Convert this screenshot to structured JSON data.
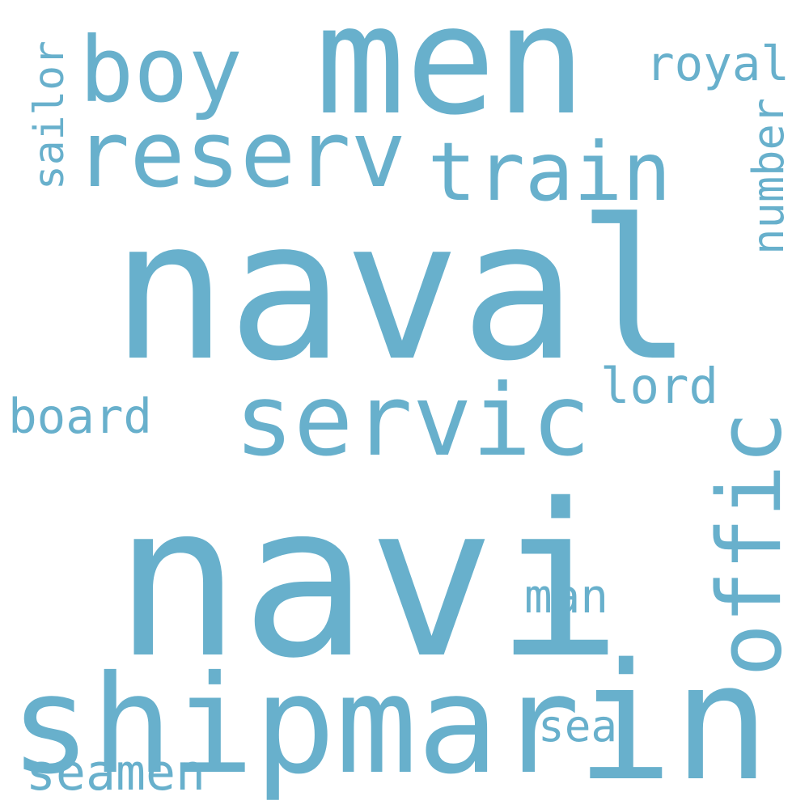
{
  "color": "#68b0cc",
  "words": [
    {
      "id": "naval",
      "text": "naval"
    },
    {
      "id": "navi",
      "text": "navi"
    },
    {
      "id": "men",
      "text": "men"
    },
    {
      "id": "servic",
      "text": "servic"
    },
    {
      "id": "shipmar",
      "text": "shipmar"
    },
    {
      "id": "in",
      "text": "in"
    },
    {
      "id": "reserv",
      "text": "reserv"
    },
    {
      "id": "train",
      "text": "train"
    },
    {
      "id": "boy",
      "text": "boy"
    },
    {
      "id": "offic",
      "text": "offic"
    },
    {
      "id": "royal",
      "text": "royal"
    },
    {
      "id": "sailor",
      "text": "sailor"
    },
    {
      "id": "number",
      "text": "number"
    },
    {
      "id": "lord",
      "text": "lord"
    },
    {
      "id": "board",
      "text": "board"
    },
    {
      "id": "man",
      "text": "man"
    },
    {
      "id": "sea",
      "text": "sea"
    },
    {
      "id": "seamen",
      "text": "seamen"
    }
  ]
}
